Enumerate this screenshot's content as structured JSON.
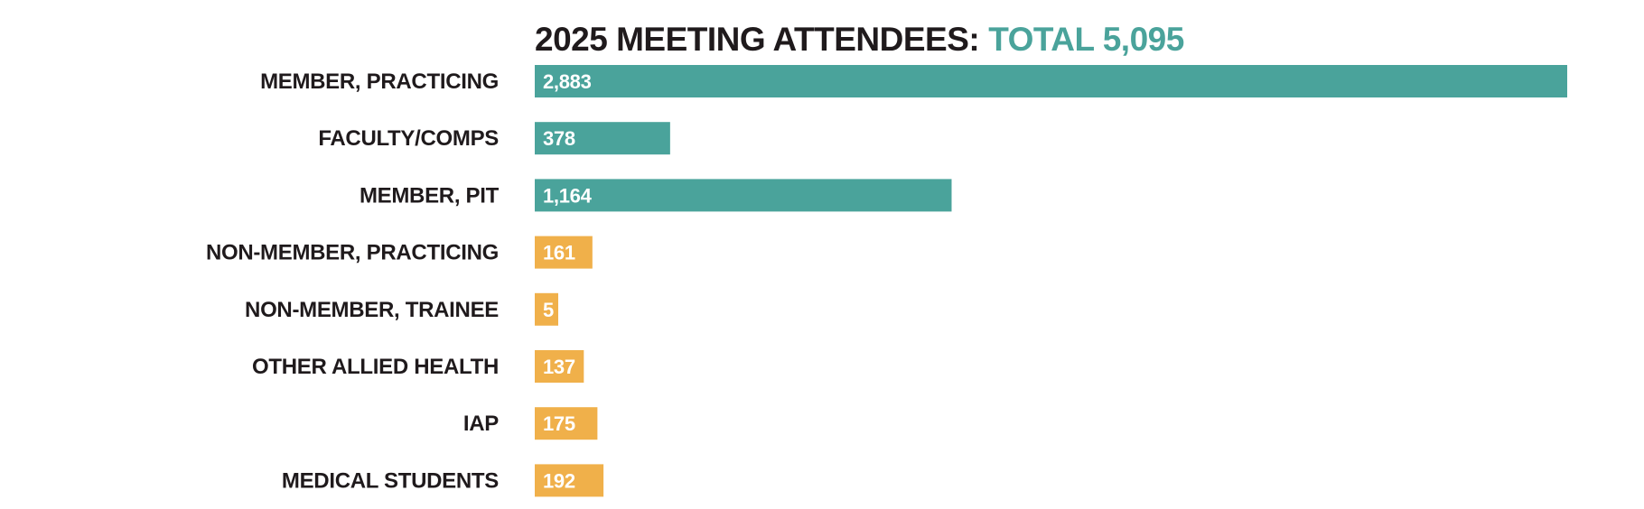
{
  "chart_data": {
    "type": "bar",
    "orientation": "horizontal",
    "title": "2025 MEETING ATTENDEES:",
    "title_total": "TOTAL 5,095",
    "categories": [
      "MEMBER, PRACTICING",
      "FACULTY/COMPS",
      "MEMBER, PIT",
      "NON-MEMBER, PRACTICING",
      "NON-MEMBER, TRAINEE",
      "OTHER ALLIED HEALTH",
      "IAP",
      "MEDICAL STUDENTS"
    ],
    "values": [
      2883,
      378,
      1164,
      161,
      5,
      137,
      175,
      192
    ],
    "value_labels": [
      "2,883",
      "378",
      "1,164",
      "161",
      "5",
      "137",
      "175",
      "192"
    ],
    "groups": [
      "member",
      "member",
      "member",
      "non-member",
      "non-member",
      "non-member",
      "non-member",
      "non-member"
    ],
    "xlim": [
      0,
      2883
    ],
    "xlabel": "",
    "ylabel": "",
    "grid": false,
    "legend": "none"
  },
  "colors": {
    "member": "#4aa39b",
    "non-member": "#f0b04a",
    "text": "#1f1a1c",
    "bar_text": "#ffffff"
  }
}
